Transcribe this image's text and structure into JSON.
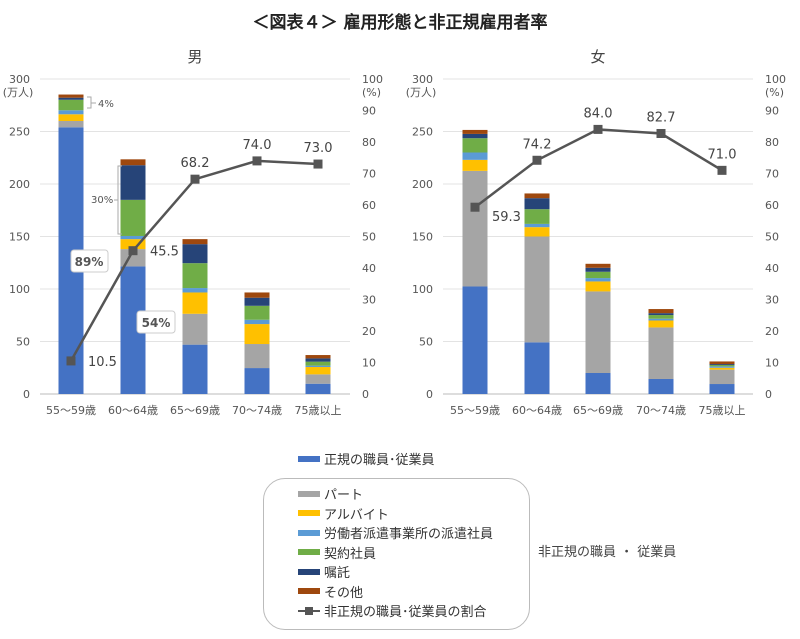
{
  "title": "＜図表４＞ 雇用形態と非正規雇用者率",
  "colors": {
    "regular": "#4472C4",
    "part": "#A5A5A5",
    "arbeit": "#FFC000",
    "dispatch": "#5B9BD5",
    "contract": "#70AD47",
    "shokutaku": "#264478",
    "other": "#9E480E",
    "ratio": "#555555"
  },
  "legend": {
    "regular": "正規の職員･従業員",
    "items": [
      "パート",
      "アルバイト",
      "労働者派遣事業所の派遣社員",
      "契約社員",
      "嘱託",
      "その他",
      "非正規の職員･従業員の割合"
    ],
    "group_label": "非正規の職員 ・ 従業員"
  },
  "chart_data": [
    {
      "type": "bar+line",
      "title": "男",
      "y_left_unit": "(万人)",
      "y_right_unit": "(%)",
      "ylim_left": [
        0,
        300
      ],
      "ylim_right": [
        0,
        100
      ],
      "yticks_left": [
        0,
        50,
        100,
        150,
        200,
        250,
        300
      ],
      "yticks_right": [
        0,
        10,
        20,
        30,
        40,
        50,
        60,
        70,
        80,
        90,
        100
      ],
      "grid": true,
      "categories": [
        "55～59歳",
        "60～64歳",
        "65～69歳",
        "70～74歳",
        "75歳以上"
      ],
      "series": [
        {
          "name": "正規の職員･従業員",
          "values": [
            254.0,
            121.5,
            47.0,
            24.7,
            9.8
          ]
        },
        {
          "name": "パート",
          "values": [
            6.0,
            16.5,
            29.4,
            22.9,
            8.9
          ]
        },
        {
          "name": "アルバイト",
          "values": [
            6.4,
            9.5,
            20.3,
            19.0,
            7.0
          ]
        },
        {
          "name": "労働者派遣事業所の派遣社員",
          "values": [
            3.8,
            3.0,
            4.2,
            4.1,
            1.3
          ]
        },
        {
          "name": "契約社員",
          "values": [
            10.0,
            34.4,
            23.7,
            13.3,
            3.8
          ]
        },
        {
          "name": "嘱託",
          "values": [
            2.0,
            33.0,
            18.1,
            7.7,
            3.1
          ]
        },
        {
          "name": "その他",
          "values": [
            3.0,
            5.6,
            4.8,
            5.0,
            3.2
          ]
        }
      ],
      "line": {
        "name": "非正規の職員･従業員の割合",
        "values": [
          10.5,
          45.5,
          68.2,
          74.0,
          73.0
        ],
        "labels": [
          "10.5",
          "45.5",
          "68.2",
          "74.0",
          "73.0"
        ]
      },
      "annotations": [
        {
          "text": "4%",
          "category": "55～59歳"
        },
        {
          "text": "30%",
          "category": "60～64歳"
        },
        {
          "text": "89%",
          "category": "55～59歳"
        },
        {
          "text": "54%",
          "category": "60～64歳"
        }
      ]
    },
    {
      "type": "bar+line",
      "title": "女",
      "y_left_unit": "(万人)",
      "y_right_unit": "(%)",
      "ylim_left": [
        0,
        300
      ],
      "ylim_right": [
        0,
        100
      ],
      "yticks_left": [
        0,
        50,
        100,
        150,
        200,
        250,
        300
      ],
      "yticks_right": [
        0,
        10,
        20,
        30,
        40,
        50,
        60,
        70,
        80,
        90,
        100
      ],
      "grid": true,
      "categories": [
        "55～59歳",
        "60～64歳",
        "65～69歳",
        "70～74歳",
        "75歳以上"
      ],
      "series": [
        {
          "name": "正規の職員･従業員",
          "values": [
            102.4,
            49.2,
            20.0,
            14.3,
            9.5
          ]
        },
        {
          "name": "パート",
          "values": [
            110.1,
            100.8,
            77.7,
            49.1,
            13.7
          ]
        },
        {
          "name": "アルバイト",
          "values": [
            10.5,
            8.9,
            9.5,
            6.6,
            1.8
          ]
        },
        {
          "name": "労働者派遣事業所の派遣社員",
          "values": [
            7.0,
            3.1,
            3.2,
            1.7,
            1.3
          ]
        },
        {
          "name": "契約社員",
          "values": [
            13.6,
            14.0,
            6.0,
            3.5,
            1.3
          ]
        },
        {
          "name": "嘱託",
          "values": [
            4.1,
            10.5,
            3.8,
            1.8,
            0.9
          ]
        },
        {
          "name": "その他",
          "values": [
            3.8,
            4.5,
            3.8,
            3.9,
            2.5
          ]
        }
      ],
      "line": {
        "name": "非正規の職員･従業員の割合",
        "values": [
          59.3,
          74.2,
          84.0,
          82.7,
          71.0
        ],
        "labels": [
          "59.3",
          "74.2",
          "84.0",
          "82.7",
          "71.0"
        ]
      },
      "annotations": []
    }
  ]
}
